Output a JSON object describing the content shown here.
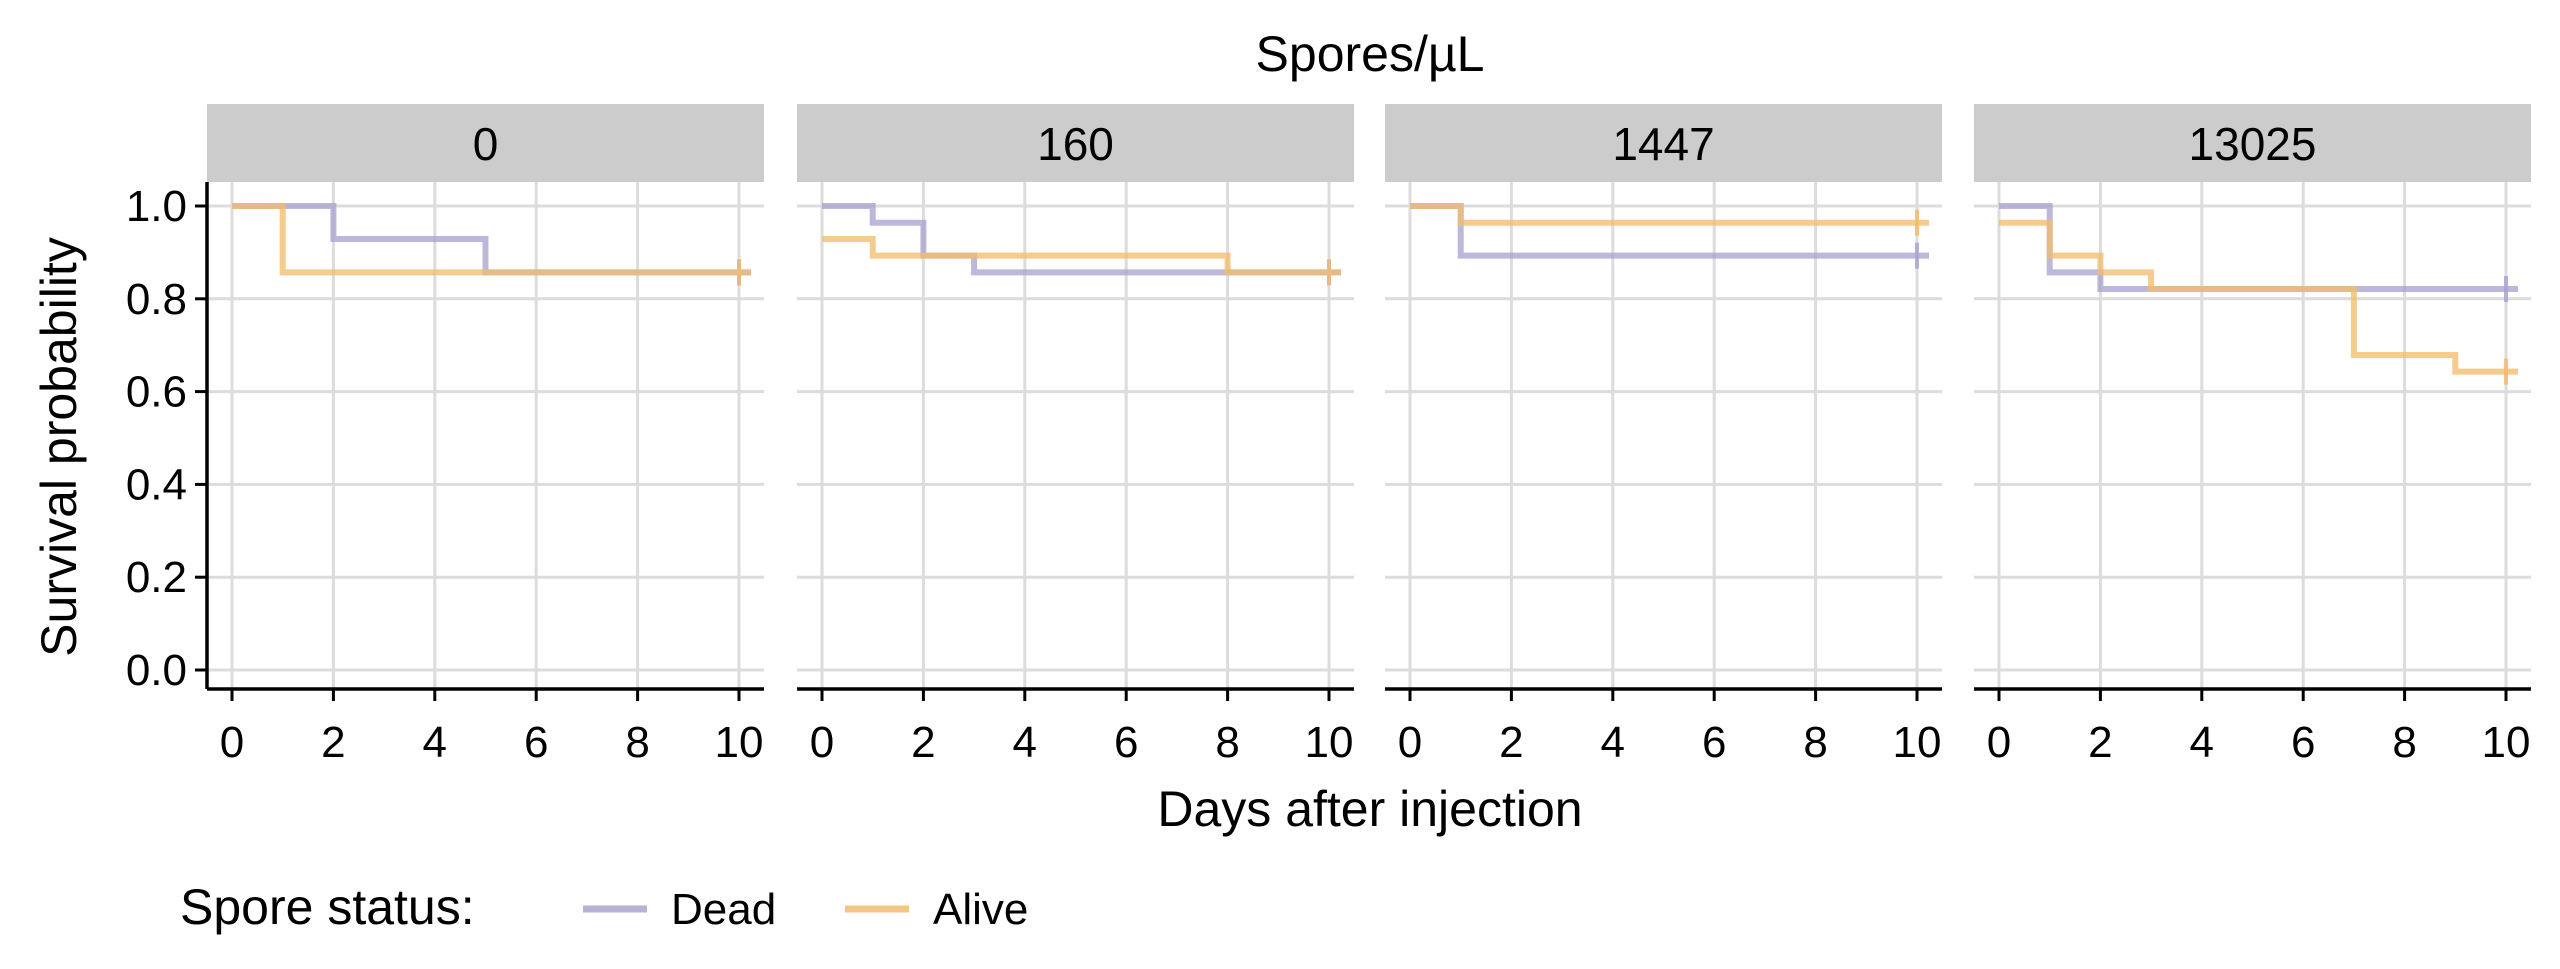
{
  "chart_data": {
    "type": "line",
    "subtype": "step (Kaplan-Meier), faceted",
    "title": "Spores/µL",
    "xlabel": "Days after injection",
    "ylabel": "Survival probability",
    "xlim": [
      0,
      10
    ],
    "ylim": [
      0,
      1
    ],
    "x_ticks": [
      "0",
      "2",
      "4",
      "6",
      "8",
      "10"
    ],
    "y_ticks": [
      "0.0",
      "0.2",
      "0.4",
      "0.6",
      "0.8",
      "1.0"
    ],
    "grid": true,
    "legend": {
      "title": "Spore status:",
      "placement": "bottom",
      "entries": [
        {
          "name": "Dead",
          "color": "#a9a4d1"
        },
        {
          "name": "Alive",
          "color": "#f2bc6e"
        }
      ]
    },
    "censor_marker": "+",
    "facets": [
      {
        "label": "0",
        "series": [
          {
            "name": "Dead",
            "steps": [
              [
                0,
                1.0
              ],
              [
                2,
                0.929
              ],
              [
                5,
                0.857
              ]
            ],
            "end": 10
          },
          {
            "name": "Alive",
            "steps": [
              [
                0,
                1.0
              ],
              [
                1,
                0.857
              ]
            ],
            "end": 10
          }
        ]
      },
      {
        "label": "160",
        "series": [
          {
            "name": "Dead",
            "steps": [
              [
                0,
                1.0
              ],
              [
                1,
                0.964
              ],
              [
                2,
                0.893
              ],
              [
                3,
                0.857
              ]
            ],
            "end": 10
          },
          {
            "name": "Alive",
            "steps": [
              [
                0,
                0.929
              ],
              [
                1,
                0.893
              ],
              [
                8,
                0.857
              ]
            ],
            "end": 10
          }
        ]
      },
      {
        "label": "1447",
        "series": [
          {
            "name": "Dead",
            "steps": [
              [
                0,
                1.0
              ],
              [
                1,
                0.893
              ]
            ],
            "end": 10
          },
          {
            "name": "Alive",
            "steps": [
              [
                0,
                1.0
              ],
              [
                1,
                0.964
              ]
            ],
            "end": 10
          }
        ]
      },
      {
        "label": "13025",
        "series": [
          {
            "name": "Dead",
            "steps": [
              [
                0,
                1.0
              ],
              [
                1,
                0.857
              ],
              [
                2,
                0.821
              ]
            ],
            "end": 10
          },
          {
            "name": "Alive",
            "steps": [
              [
                0,
                0.964
              ],
              [
                1,
                0.893
              ],
              [
                2,
                0.857
              ],
              [
                3,
                0.821
              ],
              [
                7,
                0.679
              ],
              [
                9,
                0.643
              ]
            ],
            "end": 10
          }
        ]
      }
    ]
  }
}
